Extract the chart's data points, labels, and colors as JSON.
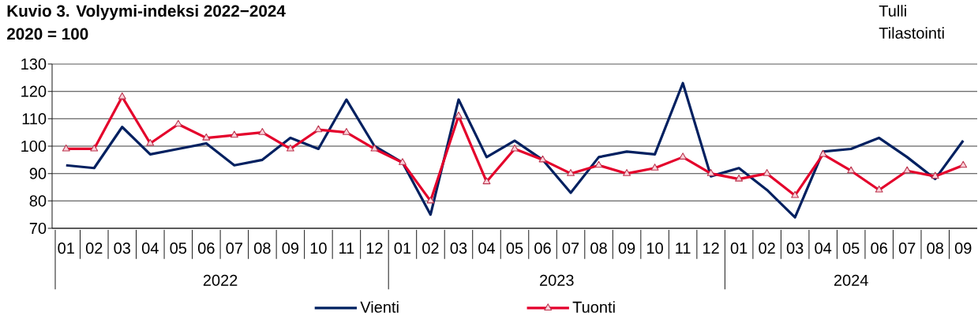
{
  "chart_data": {
    "type": "line",
    "title": "Kuvio 3. Volyymi-indeksi 2022−2024",
    "subtitle": "2020 = 100",
    "categories": [
      "01",
      "02",
      "03",
      "04",
      "05",
      "06",
      "07",
      "08",
      "09",
      "10",
      "11",
      "12",
      "01",
      "02",
      "03",
      "04",
      "05",
      "06",
      "07",
      "08",
      "09",
      "10",
      "11",
      "12",
      "01",
      "02",
      "03",
      "04",
      "05",
      "06",
      "07",
      "08",
      "09"
    ],
    "series": [
      {
        "name": "Vienti",
        "color": "#002060",
        "marker": "none",
        "values": [
          93,
          92,
          107,
          97,
          99,
          101,
          93,
          95,
          103,
          99,
          117,
          100,
          94,
          75,
          117,
          96,
          102,
          95,
          83,
          96,
          98,
          97,
          123,
          89,
          92,
          84,
          74,
          98,
          99,
          103,
          96,
          88,
          102
        ]
      },
      {
        "name": "Tuonti",
        "color": "#e4002b",
        "marker": "triangle",
        "values": [
          99,
          99,
          118,
          101,
          108,
          103,
          104,
          105,
          99,
          106,
          105,
          99,
          94,
          80,
          111,
          87,
          99,
          95,
          90,
          93,
          90,
          92,
          96,
          90,
          88,
          90,
          82,
          97,
          91,
          84,
          91,
          89,
          93
        ]
      }
    ],
    "ylim": [
      70,
      130
    ],
    "yticks": [
      70,
      80,
      90,
      100,
      110,
      120,
      130
    ],
    "grid": "y",
    "legend": "bottom",
    "line_style": "solid",
    "annotations": [
      "Tulli Tilastointi",
      "2022",
      "2023",
      "2024"
    ]
  }
}
